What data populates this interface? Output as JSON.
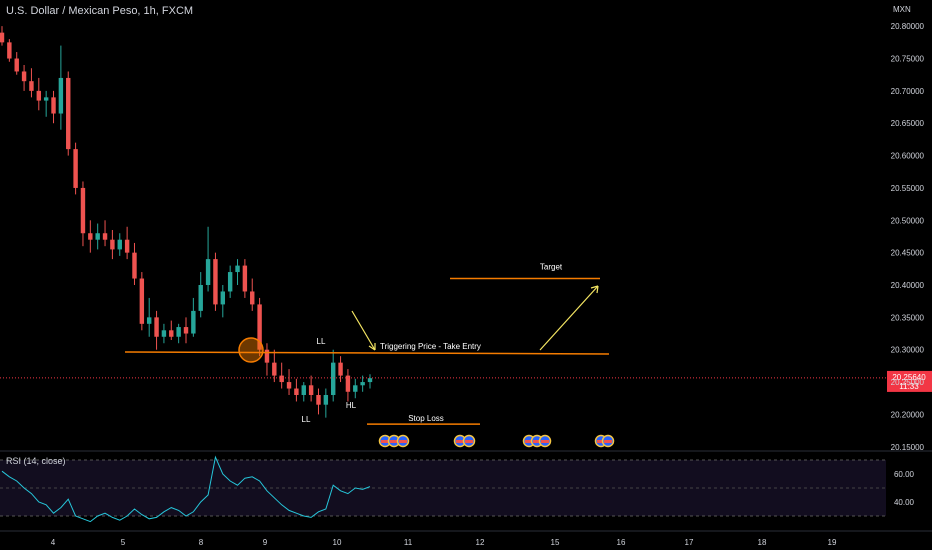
{
  "chart_data": {
    "type": "candlestick",
    "title": "U.S. Dollar / Mexican Peso, 1h, FXCM",
    "currency": "MXN",
    "price_axis": {
      "ticks": [
        "20.80000",
        "20.75000",
        "20.70000",
        "20.65000",
        "20.60000",
        "20.55000",
        "20.50000",
        "20.45000",
        "20.40000",
        "20.35000",
        "20.30000",
        "20.25000",
        "20.20000",
        "20.15000"
      ],
      "ylim": [
        20.145,
        20.825
      ]
    },
    "time_axis": {
      "ticks": [
        "4",
        "5",
        "8",
        "9",
        "10",
        "11",
        "12",
        "15",
        "16",
        "17",
        "18",
        "19"
      ]
    },
    "current_price": {
      "value": "20.25640",
      "countdown": "11:33",
      "color": "#f23645"
    },
    "series": [
      {
        "values": [
          [
            20.79,
            20.8,
            20.77,
            20.775
          ],
          [
            20.775,
            20.78,
            20.745,
            20.75
          ],
          [
            20.75,
            20.76,
            20.725,
            20.73
          ],
          [
            20.73,
            20.74,
            20.7,
            20.715
          ],
          [
            20.715,
            20.735,
            20.69,
            20.7
          ],
          [
            20.7,
            20.72,
            20.67,
            20.685
          ],
          [
            20.685,
            20.7,
            20.66,
            20.69
          ],
          [
            20.69,
            20.7,
            20.65,
            20.665
          ],
          [
            20.665,
            20.77,
            20.64,
            20.72
          ],
          [
            20.72,
            20.73,
            20.6,
            20.61
          ],
          [
            20.61,
            20.62,
            20.54,
            20.55
          ],
          [
            20.55,
            20.56,
            20.46,
            20.48
          ],
          [
            20.48,
            20.5,
            20.45,
            20.47
          ],
          [
            20.47,
            20.495,
            20.455,
            20.48
          ],
          [
            20.48,
            20.5,
            20.46,
            20.47
          ],
          [
            20.47,
            20.485,
            20.44,
            20.455
          ],
          [
            20.455,
            20.48,
            20.445,
            20.47
          ],
          [
            20.47,
            20.49,
            20.44,
            20.45
          ],
          [
            20.45,
            20.465,
            20.4,
            20.41
          ],
          [
            20.41,
            20.42,
            20.33,
            20.34
          ],
          [
            20.34,
            20.38,
            20.32,
            20.35
          ],
          [
            20.35,
            20.36,
            20.3,
            20.32
          ],
          [
            20.32,
            20.34,
            20.31,
            20.33
          ],
          [
            20.33,
            20.345,
            20.315,
            20.32
          ],
          [
            20.32,
            20.34,
            20.31,
            20.335
          ],
          [
            20.335,
            20.35,
            20.31,
            20.325
          ],
          [
            20.325,
            20.38,
            20.32,
            20.36
          ],
          [
            20.36,
            20.42,
            20.35,
            20.4
          ],
          [
            20.4,
            20.49,
            20.39,
            20.44
          ],
          [
            20.44,
            20.45,
            20.36,
            20.37
          ],
          [
            20.37,
            20.4,
            20.35,
            20.39
          ],
          [
            20.39,
            20.43,
            20.38,
            20.42
          ],
          [
            20.42,
            20.44,
            20.4,
            20.43
          ],
          [
            20.43,
            20.44,
            20.38,
            20.39
          ],
          [
            20.39,
            20.41,
            20.36,
            20.37
          ],
          [
            20.37,
            20.38,
            20.29,
            20.3
          ],
          [
            20.3,
            20.31,
            20.26,
            20.28
          ],
          [
            20.28,
            20.3,
            20.25,
            20.26
          ],
          [
            20.26,
            20.28,
            20.24,
            20.25
          ],
          [
            20.25,
            20.27,
            20.23,
            20.24
          ],
          [
            20.24,
            20.255,
            20.22,
            20.23
          ],
          [
            20.23,
            20.25,
            20.22,
            20.245
          ],
          [
            20.245,
            20.26,
            20.22,
            20.23
          ],
          [
            20.23,
            20.24,
            20.2,
            20.215
          ],
          [
            20.215,
            20.24,
            20.195,
            20.23
          ],
          [
            20.23,
            20.3,
            20.22,
            20.28
          ],
          [
            20.28,
            20.29,
            20.25,
            20.26
          ],
          [
            20.26,
            20.27,
            20.22,
            20.235
          ],
          [
            20.235,
            20.255,
            20.225,
            20.245
          ],
          [
            20.245,
            20.26,
            20.235,
            20.25
          ],
          [
            20.25,
            20.262,
            20.24,
            20.256
          ]
        ]
      }
    ],
    "annotations": {
      "trigger_label": "Triggering Price - Take Entry",
      "trigger_price": 20.295,
      "target_label": "Target",
      "target_price": 20.41,
      "stop_label": "Stop Loss",
      "stop_price": 20.185,
      "ll_top": "LL",
      "ll_bottom": "LL",
      "hl": "HL"
    },
    "rsi": {
      "title": "RSI (14, close)",
      "ticks": [
        "60.00",
        "40.00"
      ],
      "ylim": [
        25,
        75
      ],
      "values": [
        62,
        58,
        55,
        50,
        46,
        40,
        38,
        32,
        36,
        42,
        30,
        28,
        26,
        30,
        32,
        29,
        27,
        30,
        35,
        31,
        28,
        29,
        33,
        36,
        34,
        30,
        33,
        40,
        45,
        72,
        60,
        55,
        52,
        57,
        58,
        55,
        48,
        43,
        38,
        34,
        32,
        30,
        29,
        33,
        35,
        52,
        48,
        46,
        50,
        49,
        51
      ]
    }
  }
}
